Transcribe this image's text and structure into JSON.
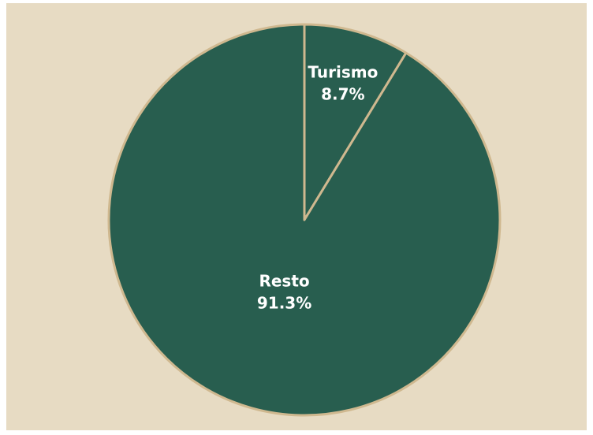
{
  "chart_data": {
    "type": "pie",
    "slices": [
      {
        "label": "Turismo",
        "value": 8.7,
        "value_label": "8.7%"
      },
      {
        "label": "Resto",
        "value": 91.3,
        "value_label": "91.3%"
      }
    ],
    "start": "top",
    "direction": "clockwise",
    "title": "",
    "legend": "none"
  },
  "colors": {
    "background": "#e7dbc3",
    "slice_fill": "#285e4f",
    "slice_border": "#cfb88f",
    "label_text": "#ffffff"
  }
}
